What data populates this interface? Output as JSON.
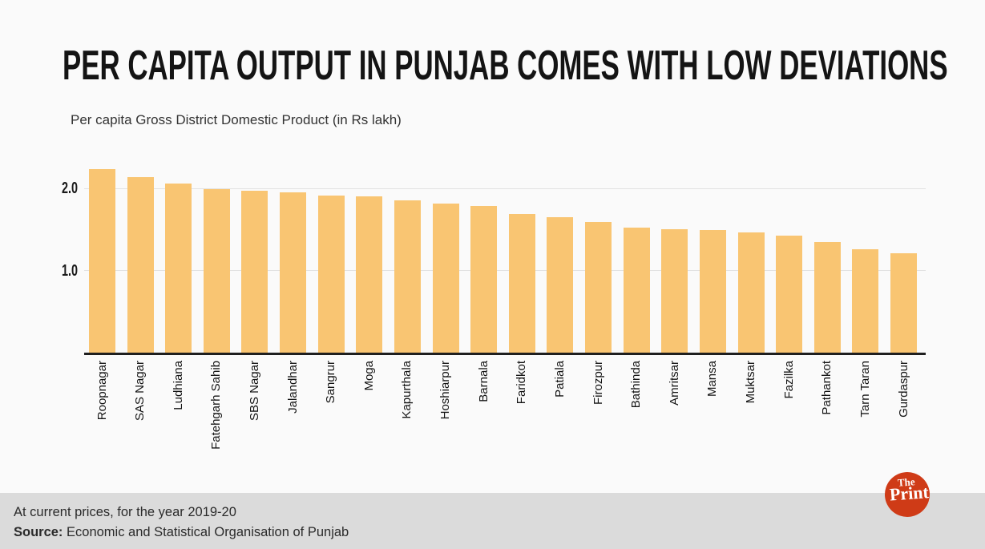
{
  "theme": {
    "background": "#fafafa",
    "title_color": "#141414",
    "bar_color": "#f9c572",
    "grid_color": "#e2e2e2",
    "axis_color": "#1f1f1f",
    "footer_bg": "#dbdbdb",
    "logo_red": "#cf3b17"
  },
  "header": {
    "title": "PER CAPITA OUTPUT IN PUNJAB COMES WITH LOW DEVIATIONS",
    "subtitle": "Per capita Gross District Domestic Product (in Rs lakh)"
  },
  "chart_data": {
    "type": "bar",
    "title": "PER CAPITA OUTPUT IN PUNJAB COMES WITH LOW DEVIATIONS",
    "subtitle": "Per capita Gross District Domestic Product (in Rs lakh)",
    "categories": [
      "Roopnagar",
      "SAS Nagar",
      "Ludhiana",
      "Fatehgarh Sahib",
      "SBS Nagar",
      "Jalandhar",
      "Sangrur",
      "Moga",
      "Kapurthala",
      "Hoshiarpur",
      "Barnala",
      "Faridkot",
      "Patiala",
      "Firozpur",
      "Bathinda",
      "Amritsar",
      "Mansa",
      "Muktsar",
      "Fazilka",
      "Pathankot",
      "Tarn Taran",
      "Gurdaspur"
    ],
    "values": [
      2.23,
      2.14,
      2.06,
      1.99,
      1.97,
      1.95,
      1.91,
      1.9,
      1.85,
      1.81,
      1.79,
      1.69,
      1.65,
      1.59,
      1.52,
      1.5,
      1.49,
      1.46,
      1.42,
      1.35,
      1.26,
      1.21
    ],
    "xlabel": "",
    "ylabel": "",
    "yticks": [
      1.0,
      2.0
    ],
    "ytick_labels": [
      "1.0",
      "2.0"
    ],
    "ylim": [
      0,
      2.35
    ],
    "grid": "horizontal",
    "legend": "none",
    "bar_color": "#f9c572"
  },
  "footer": {
    "note": "At current prices, for the year 2019-20",
    "source_label": "Source:",
    "source_text": " Economic and Statistical Organisation of Punjab"
  },
  "logo": {
    "line1": "The",
    "line2": "Print"
  }
}
